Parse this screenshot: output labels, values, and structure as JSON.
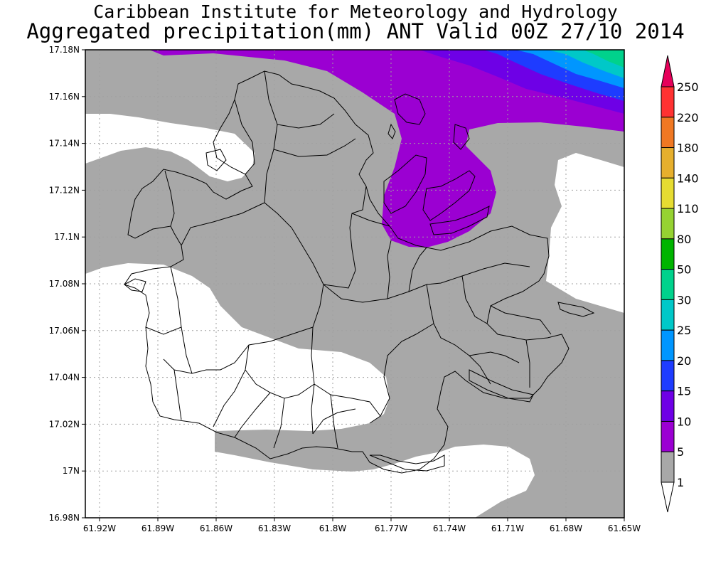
{
  "header": {
    "institution": "Caribbean Institute for Meteorology and Hydrology",
    "product": "Aggregated precipitation(mm) ANT Valid 00Z 27/10 2014"
  },
  "map": {
    "lat_ticks": [
      "17.18N",
      "17.16N",
      "17.14N",
      "17.12N",
      "17.1N",
      "17.08N",
      "17.06N",
      "17.04N",
      "17.02N",
      "17N",
      "16.98N"
    ],
    "lon_ticks": [
      "61.92W",
      "61.89W",
      "61.86W",
      "61.83W",
      "61.8W",
      "61.77W",
      "61.74W",
      "61.71W",
      "61.68W",
      "61.65W"
    ],
    "colors": {
      "band_1_5": "#a8a8a8",
      "band_5_10": "#9b00d2",
      "band_10_15": "#6e00e6",
      "band_15_20": "#1e3cff",
      "band_20_25": "#0096ff",
      "band_25_30": "#00c8c8",
      "band_30_50": "#00d28c"
    }
  },
  "legend": {
    "labels": [
      "250",
      "220",
      "180",
      "140",
      "110",
      "80",
      "50",
      "30",
      "25",
      "20",
      "15",
      "10",
      "5",
      "1"
    ],
    "colors": [
      "#e6005a",
      "#ff3232",
      "#f07823",
      "#e6af2d",
      "#e6dc32",
      "#96d232",
      "#00b400",
      "#00d28c",
      "#00c8c8",
      "#0096ff",
      "#1e3cff",
      "#6e00e6",
      "#9b00d2",
      "#a8a8a8",
      "#ffffff"
    ]
  }
}
